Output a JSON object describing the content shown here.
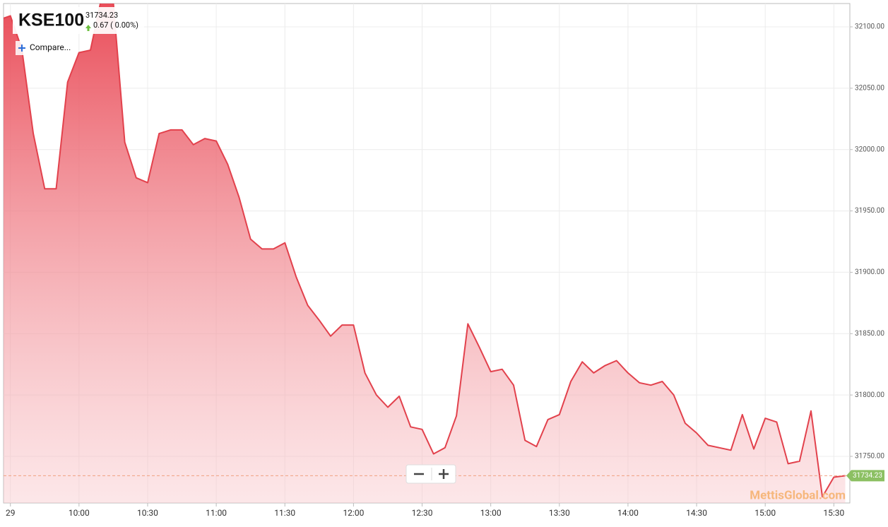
{
  "header": {
    "symbol": "KSE100",
    "price": "31734.23",
    "change": "0.67 ( 0.00%)",
    "compare": "Compare...",
    "watermark": "MettisGlobal.com"
  },
  "chart_data": {
    "type": "area",
    "color": "#e2414c",
    "grid": true,
    "x": [
      "09:27",
      "09:30",
      "09:35",
      "09:40",
      "09:45",
      "09:50",
      "09:55",
      "10:00",
      "10:05",
      "10:10",
      "10:15",
      "10:20",
      "10:25",
      "10:30",
      "10:35",
      "10:40",
      "10:45",
      "10:50",
      "10:55",
      "11:00",
      "11:05",
      "11:10",
      "11:15",
      "11:20",
      "11:25",
      "11:30",
      "11:35",
      "11:40",
      "11:45",
      "11:50",
      "11:55",
      "12:00",
      "12:05",
      "12:10",
      "12:15",
      "12:20",
      "12:25",
      "12:30",
      "12:35",
      "12:40",
      "12:45",
      "12:50",
      "12:55",
      "13:00",
      "13:05",
      "13:10",
      "13:15",
      "13:20",
      "13:25",
      "13:30",
      "13:35",
      "13:40",
      "13:45",
      "13:50",
      "13:55",
      "14:00",
      "14:05",
      "14:10",
      "14:15",
      "14:20",
      "14:25",
      "14:30",
      "14:35",
      "14:40",
      "14:45",
      "14:50",
      "14:55",
      "15:00",
      "15:05",
      "15:10",
      "15:15",
      "15:20",
      "15:25",
      "15:30",
      "15:35"
    ],
    "values": [
      32107,
      32109,
      32082,
      32013,
      31968,
      31968,
      32055,
      32079,
      32081,
      32125,
      32120,
      32006,
      31977,
      31973,
      32013,
      32016,
      32016,
      32004,
      32009,
      32007,
      31988,
      31961,
      31927,
      31919,
      31919,
      31924,
      31896,
      31873,
      31861,
      31848,
      31857,
      31857,
      31818,
      31800,
      31790,
      31799,
      31774,
      31772,
      31752,
      31757,
      31783,
      31858,
      31839,
      31819,
      31821,
      31808,
      31763,
      31758,
      31780,
      31784,
      31811,
      31827,
      31818,
      31824,
      31828,
      31818,
      31810,
      31808,
      31811,
      31800,
      31777,
      31769,
      31759,
      31757,
      31755,
      31784,
      31756,
      31781,
      31778,
      31744,
      31746,
      31787,
      31717,
      31733,
      31734.23
    ],
    "last_value": 31734.23,
    "last_label": "31734.23",
    "xlim": [
      "09:27",
      "15:37"
    ],
    "xticks": [
      {
        "value": "09:30",
        "label": "29"
      },
      "10:00",
      "10:30",
      "11:00",
      "11:30",
      "12:00",
      "12:30",
      "13:00",
      "13:30",
      "14:00",
      "14:30",
      "15:00",
      "15:30"
    ],
    "ylim": [
      31712,
      32119
    ],
    "yticks": [
      {
        "value": 31750,
        "label": "31750.00"
      },
      {
        "value": 31800,
        "label": "31800.00"
      },
      {
        "value": 31850,
        "label": "31850.00"
      },
      {
        "value": 31900,
        "label": "31900.00"
      },
      {
        "value": 31950,
        "label": "31950.00"
      },
      {
        "value": 32000,
        "label": "32000.00"
      },
      {
        "value": 32050,
        "label": "32050.00"
      },
      {
        "value": 32100,
        "label": "32100.00"
      }
    ]
  }
}
